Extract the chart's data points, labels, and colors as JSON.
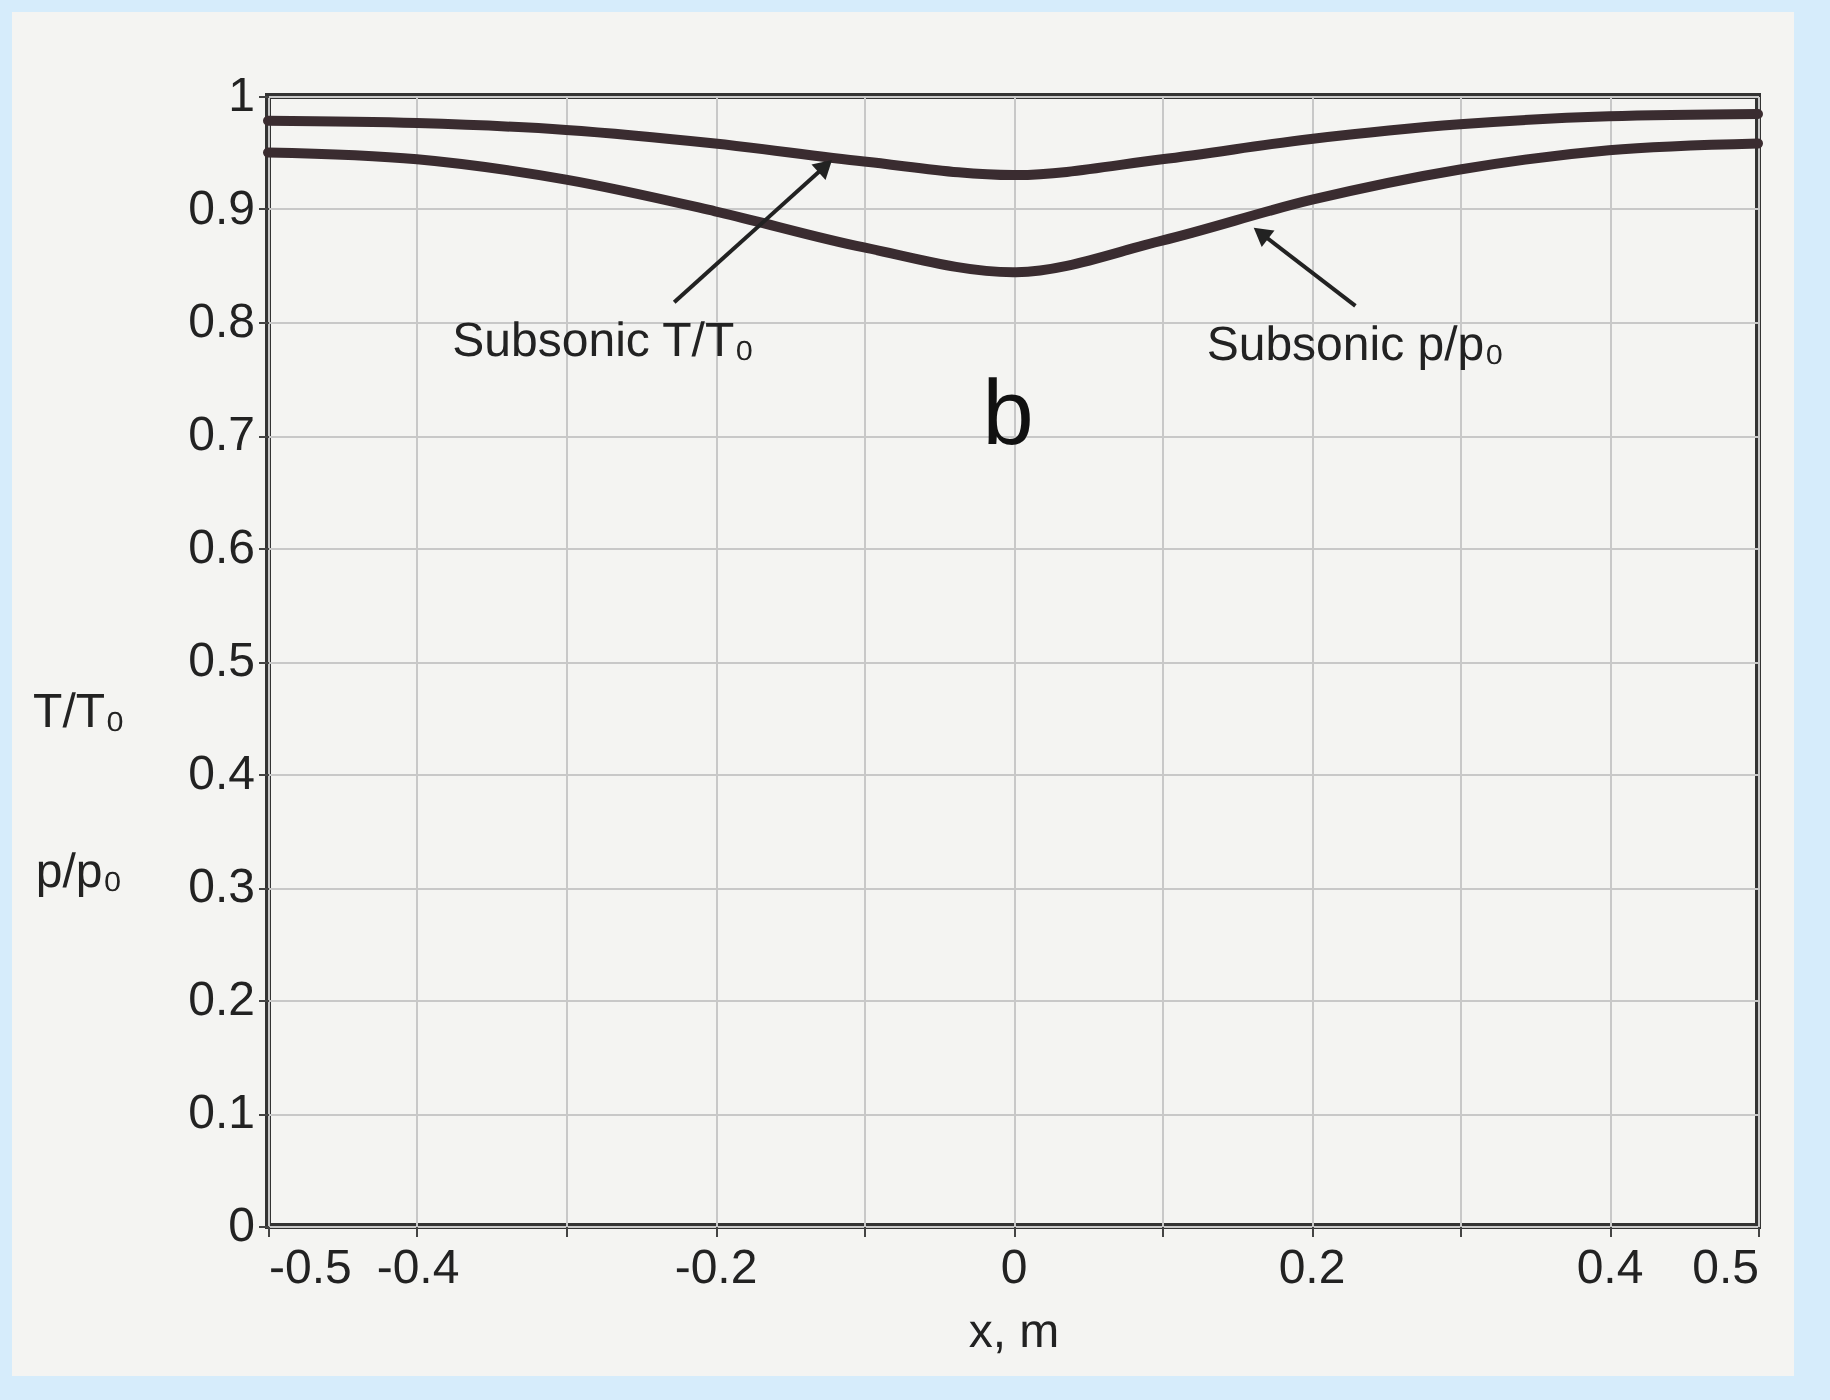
{
  "chart_data": {
    "type": "line",
    "xlabel": "x, m",
    "ylabel": "T/T₀\np/p₀",
    "x": [
      -0.5,
      -0.4,
      -0.3,
      -0.2,
      -0.1,
      0,
      0.1,
      0.2,
      0.3,
      0.4,
      0.5
    ],
    "series": [
      {
        "color": "#3a2c30",
        "values": [
          0.978,
          0.976,
          0.97,
          0.958,
          0.942,
          0.93,
          0.944,
          0.962,
          0.975,
          0.982,
          0.984
        ]
      },
      {
        "color": "#3a2c30",
        "values": [
          0.95,
          0.944,
          0.926,
          0.898,
          0.866,
          0.844,
          0.872,
          0.908,
          0.935,
          0.952,
          0.958
        ]
      }
    ],
    "xlim": [
      -0.5,
      0.5
    ],
    "xticks": [
      -0.5,
      -0.4,
      {
        "value": -0.3,
        "label": null
      },
      -0.2,
      {
        "value": -0.1,
        "label": null
      },
      0,
      {
        "value": 0.1,
        "label": null
      },
      0.2,
      {
        "value": 0.3,
        "label": null
      },
      0.4,
      0.5
    ],
    "ylim": [
      0,
      1
    ],
    "yticks": [
      0,
      0.1,
      0.2,
      0.3,
      0.4,
      0.5,
      0.6,
      0.7,
      0.8,
      0.9,
      1
    ],
    "annotations": [
      {
        "text": "Subsonic T/T₀",
        "x": -0.12,
        "y": 0.945
      },
      {
        "text": "Subsonic p/p₀",
        "x": 0.16,
        "y": 0.885
      },
      "b"
    ],
    "grid": true,
    "marker": "none",
    "line_style": "solid"
  }
}
